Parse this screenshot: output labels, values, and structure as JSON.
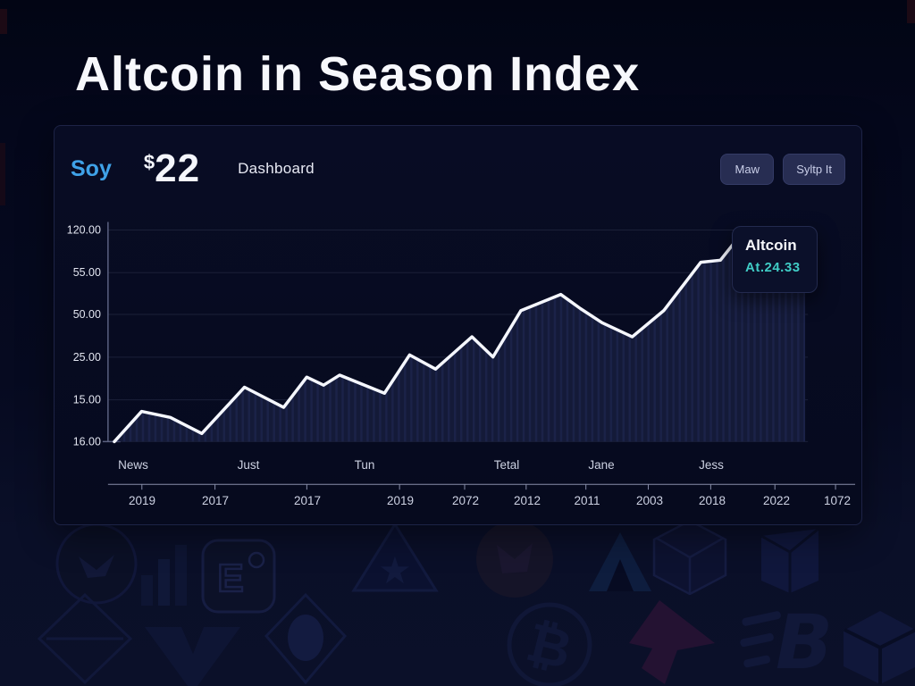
{
  "page": {
    "title": "Altcoin in Season Index"
  },
  "panel": {
    "brand": "Soy",
    "price": {
      "currency": "$",
      "amount": "22"
    },
    "subtitle": "Dashboard",
    "buttons": [
      {
        "label": "Maw"
      },
      {
        "label": "Syltp It"
      }
    ]
  },
  "tooltip": {
    "title": "Altcoin",
    "value": "At.24.33"
  },
  "chart_data": {
    "type": "area",
    "title": "Altcoin in Season Index",
    "series_name": "Altcoin",
    "xlabel": "",
    "ylabel": "",
    "grid": true,
    "legend": "none (tooltip only)",
    "ylim": [
      15,
      120
    ],
    "y_ticks": [
      "120.00",
      "55.00",
      "50.00",
      "25.00",
      "15.00",
      "16.00"
    ],
    "x_months": [
      "News",
      "Just",
      "Tun",
      "Tetal",
      "Jane",
      "Jess"
    ],
    "x_years": [
      "2019",
      "2017",
      "2017",
      "2019",
      "2072",
      "2012",
      "2011",
      "2003",
      "2018",
      "2022",
      "1072"
    ],
    "points": [
      {
        "x": 0.9,
        "v": 15
      },
      {
        "x": 4.8,
        "v": 30
      },
      {
        "x": 8.9,
        "v": 27
      },
      {
        "x": 13.4,
        "v": 19
      },
      {
        "x": 19.5,
        "v": 42
      },
      {
        "x": 25.1,
        "v": 32
      },
      {
        "x": 28.4,
        "v": 47
      },
      {
        "x": 30.8,
        "v": 43
      },
      {
        "x": 33.1,
        "v": 48
      },
      {
        "x": 39.5,
        "v": 39
      },
      {
        "x": 43.1,
        "v": 58
      },
      {
        "x": 46.8,
        "v": 51
      },
      {
        "x": 52.0,
        "v": 67
      },
      {
        "x": 55.0,
        "v": 57
      },
      {
        "x": 59.0,
        "v": 80
      },
      {
        "x": 64.7,
        "v": 88
      },
      {
        "x": 67.5,
        "v": 81
      },
      {
        "x": 70.6,
        "v": 74
      },
      {
        "x": 74.9,
        "v": 67
      },
      {
        "x": 79.4,
        "v": 80
      },
      {
        "x": 84.7,
        "v": 104
      },
      {
        "x": 87.5,
        "v": 105
      },
      {
        "x": 89.8,
        "v": 115
      },
      {
        "x": 99.6,
        "v": 118
      }
    ]
  },
  "colors": {
    "accent_blue": "#3fa2e8",
    "accent_teal": "#40ccc6",
    "line": "#f5f7ff",
    "area_fill": "#141a38",
    "panel_border": "#1d2346",
    "button_bg": "#272d52",
    "grid": "#1b2038"
  },
  "background": {
    "icons": [
      "moth-circle",
      "bar-chart",
      "app-logo",
      "triangle-star",
      "ethereum-diamond",
      "v-shape",
      "diamond-eye",
      "butterfly-circle",
      "avalanche-triangle",
      "hexagon",
      "cube-flag",
      "bitcoin",
      "arrow-cursor",
      "b-speed",
      "iso-cube"
    ]
  }
}
